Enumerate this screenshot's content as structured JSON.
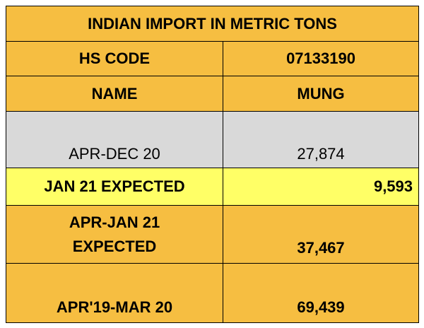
{
  "table": {
    "title": "INDIAN IMPORT IN METRIC TONS",
    "rows": [
      [
        "HS CODE",
        "07133190"
      ],
      [
        "NAME",
        "MUNG"
      ],
      [
        "APR-DEC 20",
        "27,874"
      ],
      [
        "JAN 21 EXPECTED",
        "9,593"
      ],
      [
        "APR-JAN 21 EXPECTED",
        "37,467"
      ],
      [
        "APR'19-MAR 20",
        "69,439"
      ]
    ]
  }
}
